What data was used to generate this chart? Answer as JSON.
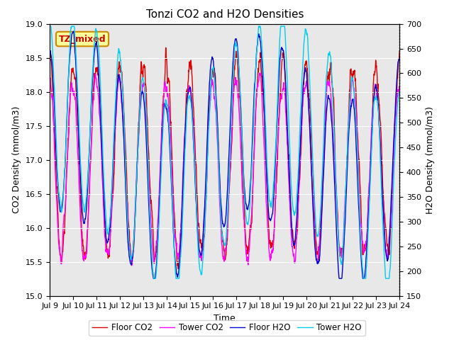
{
  "title": "Tonzi CO2 and H2O Densities",
  "xlabel": "Time",
  "ylabel_left": "CO2 Density (mmol/m3)",
  "ylabel_right": "H2O Density (mmol/m3)",
  "annotation": "TZ_mixed",
  "annotation_color": "#cc0000",
  "annotation_bg": "#ffff99",
  "annotation_border": "#cc8800",
  "x_tick_labels": [
    "Jul 9",
    "Jul 10",
    "Jul 11",
    "Jul 12",
    "Jul 13",
    "Jul 14",
    "Jul 15",
    "Jul 16",
    "Jul 17",
    "Jul 18",
    "Jul 19",
    "Jul 20",
    "Jul 21",
    "Jul 22",
    "Jul 23",
    "Jul 24"
  ],
  "co2_ylim": [
    15.0,
    19.0
  ],
  "h2o_ylim": [
    150,
    700
  ],
  "co2_yticks": [
    15.0,
    15.5,
    16.0,
    16.5,
    17.0,
    17.5,
    18.0,
    18.5,
    19.0
  ],
  "h2o_yticks": [
    150,
    200,
    250,
    300,
    350,
    400,
    450,
    500,
    550,
    600,
    650,
    700
  ],
  "legend_labels": [
    "Floor CO2",
    "Tower CO2",
    "Floor H2O",
    "Tower H2O"
  ],
  "legend_colors": [
    "#dd0000",
    "#ff00ff",
    "#0000cc",
    "#00ccee"
  ],
  "line_lw": 1.0,
  "bg_color": "#e8e8e8",
  "n_points": 1440,
  "days": 15
}
